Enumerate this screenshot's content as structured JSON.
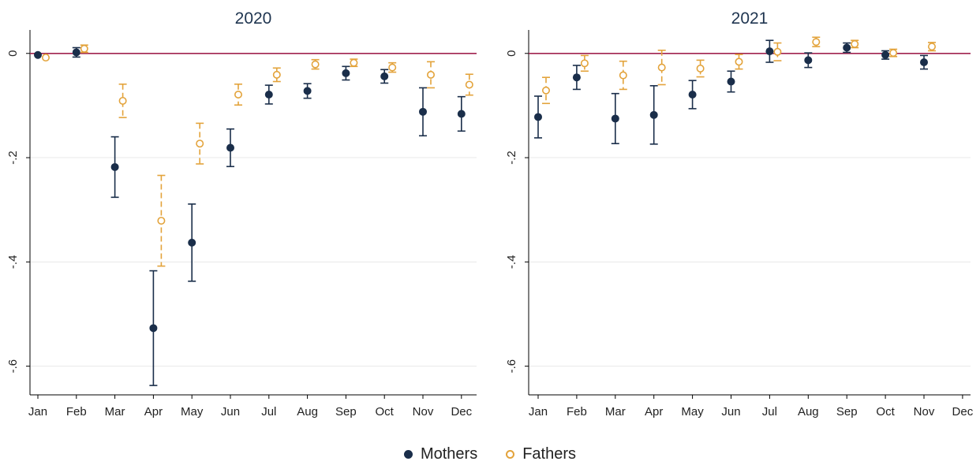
{
  "colors": {
    "mothers": "#1a2e4a",
    "fathers": "#e3a33b",
    "zero_line": "#a0234f",
    "grid": "#e8e8e8",
    "axis": "#000000"
  },
  "legend": [
    {
      "label": "Mothers",
      "marker": "filled-circle",
      "color": "#1a2e4a"
    },
    {
      "label": "Fathers",
      "marker": "hollow-circle",
      "color": "#e3a33b"
    }
  ],
  "chart_data": [
    {
      "type": "scatter",
      "title": "2020",
      "categories": [
        "Jan",
        "Feb",
        "Mar",
        "Apr",
        "May",
        "Jun",
        "Jul",
        "Aug",
        "Sep",
        "Oct",
        "Nov",
        "Dec"
      ],
      "ylim": [
        -0.655,
        0.045
      ],
      "yticks": [
        0,
        -0.2,
        -0.4,
        -0.6
      ],
      "ytick_labels": [
        "0",
        "-.2",
        "-.4",
        "-.6"
      ],
      "grid": true,
      "reference_line": 0,
      "series": [
        {
          "name": "Mothers",
          "values": [
            -0.003,
            0.002,
            -0.218,
            -0.527,
            -0.363,
            -0.181,
            -0.079,
            -0.072,
            -0.038,
            -0.044,
            -0.112,
            -0.116
          ],
          "ci_low": [
            null,
            -0.007,
            -0.276,
            -0.637,
            -0.437,
            -0.217,
            -0.097,
            -0.086,
            -0.051,
            -0.057,
            -0.158,
            -0.149
          ],
          "ci_high": [
            null,
            0.011,
            -0.16,
            -0.417,
            -0.289,
            -0.145,
            -0.061,
            -0.058,
            -0.025,
            -0.031,
            -0.066,
            -0.083
          ]
        },
        {
          "name": "Fathers",
          "values": [
            -0.008,
            0.009,
            -0.091,
            -0.321,
            -0.173,
            -0.079,
            -0.041,
            -0.021,
            -0.018,
            -0.027,
            -0.041,
            -0.06
          ],
          "ci_low": [
            null,
            0.002,
            -0.123,
            -0.408,
            -0.212,
            -0.099,
            -0.054,
            -0.03,
            -0.025,
            -0.036,
            -0.066,
            -0.08
          ],
          "ci_high": [
            null,
            0.016,
            -0.059,
            -0.234,
            -0.134,
            -0.059,
            -0.028,
            -0.012,
            -0.011,
            -0.018,
            -0.016,
            -0.04
          ]
        }
      ]
    },
    {
      "type": "scatter",
      "title": "2021",
      "categories": [
        "Jan",
        "Feb",
        "Mar",
        "Apr",
        "May",
        "Jun",
        "Jul",
        "Aug",
        "Sep",
        "Oct",
        "Nov",
        "Dec"
      ],
      "ylim": [
        -0.655,
        0.045
      ],
      "yticks": [
        0,
        -0.2,
        -0.4,
        -0.6
      ],
      "ytick_labels": [
        "0",
        "-.2",
        "-.4",
        "-.6"
      ],
      "grid": true,
      "reference_line": 0,
      "series": [
        {
          "name": "Mothers",
          "values": [
            -0.122,
            -0.046,
            -0.125,
            -0.118,
            -0.079,
            -0.054,
            0.004,
            -0.013,
            0.011,
            -0.003,
            -0.017,
            null
          ],
          "ci_low": [
            -0.162,
            -0.069,
            -0.173,
            -0.174,
            -0.106,
            -0.074,
            -0.017,
            -0.027,
            0.002,
            -0.011,
            -0.03,
            null
          ],
          "ci_high": [
            -0.082,
            -0.023,
            -0.077,
            -0.062,
            -0.052,
            -0.034,
            0.025,
            0.001,
            0.02,
            0.005,
            -0.004,
            null
          ],
          "x_offsets": [
            0,
            0,
            0,
            0,
            0,
            0,
            0,
            0,
            0,
            0,
            0,
            null
          ]
        },
        {
          "name": "Fathers",
          "values": [
            -0.071,
            -0.019,
            -0.042,
            -0.027,
            -0.029,
            -0.016,
            0.003,
            0.022,
            0.018,
            0.001,
            0.013,
            null
          ],
          "ci_low": [
            -0.096,
            -0.034,
            -0.069,
            -0.06,
            -0.045,
            -0.03,
            -0.014,
            0.013,
            0.011,
            -0.006,
            0.005,
            null
          ],
          "ci_high": [
            -0.046,
            -0.004,
            -0.015,
            0.006,
            -0.013,
            -0.002,
            0.02,
            0.031,
            0.025,
            0.008,
            0.021,
            null
          ]
        }
      ]
    }
  ]
}
